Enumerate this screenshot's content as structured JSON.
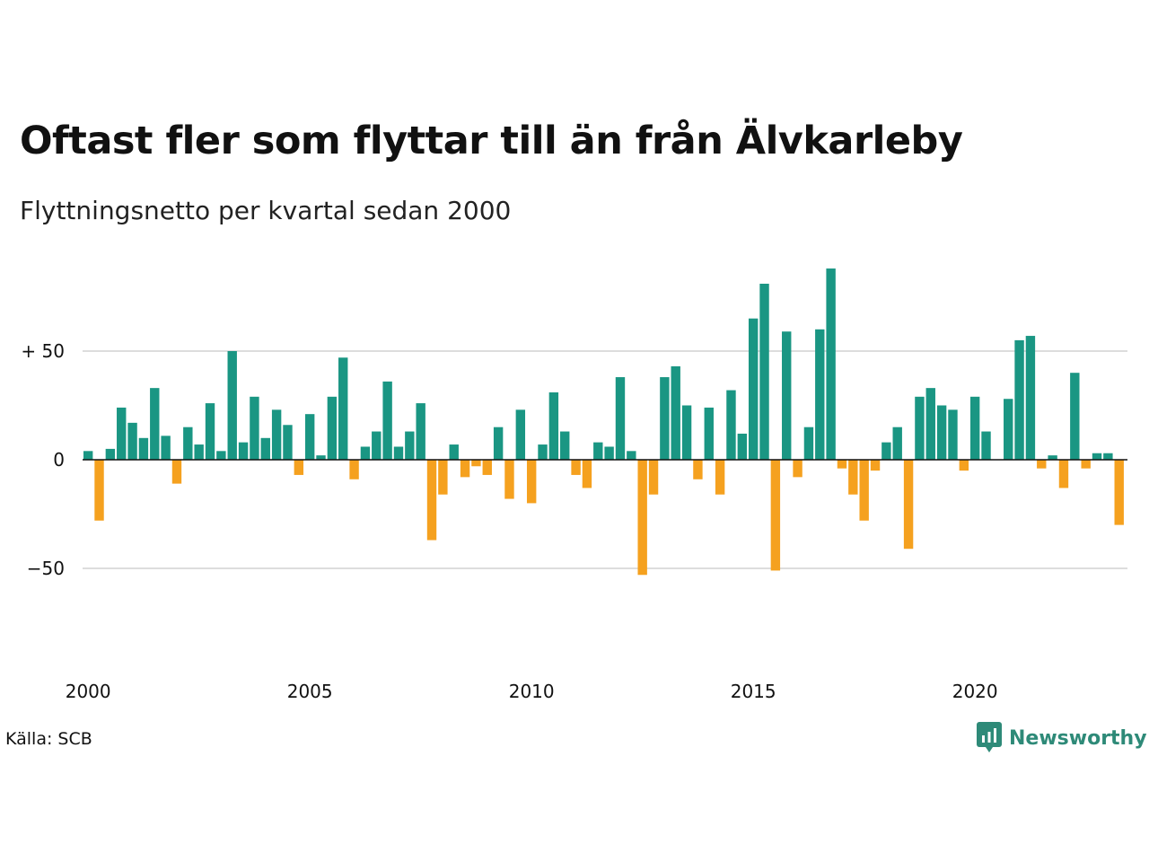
{
  "title": "Oftast fler som flyttar till än från Älvkarleby",
  "subtitle": "Flyttningsnetto per kvartal sedan 2000",
  "source": "Källa: SCB",
  "brand": {
    "name": "Newsworthy",
    "color": "#2e8a78"
  },
  "colors": {
    "positive": "#1a9683",
    "negative": "#f5a11f",
    "grid": "#dddddd",
    "zero": "#111111"
  },
  "chart_data": {
    "type": "bar",
    "title": "Oftast fler som flyttar till än från Älvkarleby",
    "subtitle": "Flyttningsnetto per kvartal sedan 2000",
    "xlabel": "",
    "ylabel": "",
    "start_year": 2000,
    "periods_per_year": 4,
    "x_ticks": [
      "2000",
      "2005",
      "2010",
      "2015",
      "2020"
    ],
    "y_ticks": [
      {
        "value": 50,
        "label": "+ 50"
      },
      {
        "value": 0,
        "label": "0"
      },
      {
        "value": -50,
        "label": "−50"
      }
    ],
    "ylim": [
      -78,
      90
    ],
    "grid": true,
    "values": [
      4,
      -28,
      5,
      24,
      17,
      10,
      33,
      11,
      -11,
      15,
      7,
      26,
      4,
      50,
      8,
      29,
      10,
      23,
      16,
      -7,
      21,
      2,
      29,
      47,
      -9,
      6,
      13,
      36,
      6,
      13,
      26,
      -37,
      -16,
      7,
      -8,
      -3,
      -7,
      15,
      -18,
      23,
      -20,
      7,
      31,
      13,
      -7,
      -13,
      8,
      6,
      38,
      4,
      -53,
      -16,
      38,
      43,
      25,
      -9,
      24,
      -16,
      32,
      12,
      65,
      81,
      -51,
      59,
      -8,
      15,
      60,
      88,
      -4,
      -16,
      -28,
      -5,
      8,
      15,
      -41,
      29,
      33,
      25,
      23,
      -5,
      29,
      13,
      0,
      28,
      55,
      57,
      -4,
      2,
      -13,
      40,
      -4,
      3,
      3,
      -30
    ]
  }
}
